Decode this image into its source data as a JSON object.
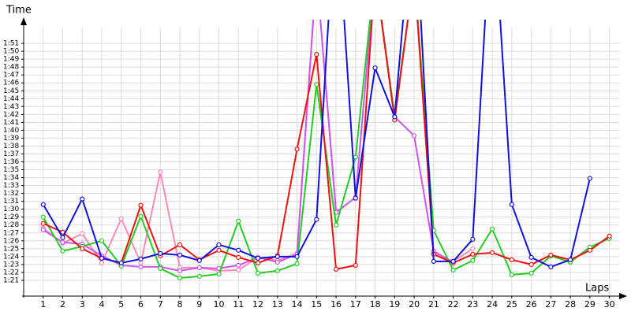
{
  "chart_data": {
    "type": "line",
    "x_label": "Laps",
    "y_label": "Time",
    "x": [
      1,
      2,
      3,
      4,
      5,
      6,
      7,
      8,
      9,
      10,
      11,
      12,
      13,
      14,
      15,
      16,
      17,
      18,
      19,
      20,
      21,
      22,
      23,
      24,
      25,
      26,
      27,
      28,
      29,
      30
    ],
    "xlim": [
      0,
      30.5
    ],
    "xticks": [
      1,
      2,
      3,
      4,
      5,
      6,
      7,
      8,
      9,
      10,
      11,
      12,
      13,
      14,
      15,
      16,
      17,
      18,
      19,
      20,
      21,
      22,
      23,
      24,
      25,
      26,
      27,
      28,
      29,
      30
    ],
    "ylim": [
      79,
      114
    ],
    "yticks": [
      {
        "value": 81,
        "label": "1:21"
      },
      {
        "value": 82,
        "label": "1:22"
      },
      {
        "value": 83,
        "label": "1:23"
      },
      {
        "value": 84,
        "label": "1:24"
      },
      {
        "value": 85,
        "label": "1:25"
      },
      {
        "value": 86,
        "label": "1:26"
      },
      {
        "value": 87,
        "label": "1:27"
      },
      {
        "value": 88,
        "label": "1:28"
      },
      {
        "value": 89,
        "label": "1:29"
      },
      {
        "value": 90,
        "label": "1:30"
      },
      {
        "value": 91,
        "label": "1:31"
      },
      {
        "value": 92,
        "label": "1:32"
      },
      {
        "value": 93,
        "label": "1:33"
      },
      {
        "value": 94,
        "label": "1:34"
      },
      {
        "value": 95,
        "label": "1:35"
      },
      {
        "value": 96,
        "label": "1:36"
      },
      {
        "value": 97,
        "label": "1:37"
      },
      {
        "value": 98,
        "label": "1:38"
      },
      {
        "value": 99,
        "label": "1:39"
      },
      {
        "value": 100,
        "label": "1:40"
      },
      {
        "value": 101,
        "label": "1:41"
      },
      {
        "value": 102,
        "label": "1:42"
      },
      {
        "value": 103,
        "label": "1:43"
      },
      {
        "value": 104,
        "label": "1:44"
      },
      {
        "value": 105,
        "label": "1:45"
      },
      {
        "value": 106,
        "label": "1:46"
      },
      {
        "value": 107,
        "label": "1:47"
      },
      {
        "value": 108,
        "label": "1:48"
      },
      {
        "value": 109,
        "label": "1:49"
      },
      {
        "value": 110,
        "label": "1:50"
      },
      {
        "value": 111,
        "label": "1:51"
      }
    ],
    "grid": true,
    "series": [
      {
        "color": "#ff88bb",
        "values": [
          87.6,
          85.7,
          86.9,
          83.2,
          88.8,
          83.2,
          94.7,
          82.6,
          82.6,
          82.2,
          82.3,
          83.9,
          83.5,
          84.4,
          120,
          89.8,
          null,
          null,
          null,
          null,
          84.6,
          83.4,
          85.0,
          null,
          null,
          null,
          null,
          null,
          null,
          null
        ]
      },
      {
        "color": "#cc55ee",
        "values": [
          87.4,
          85.8,
          85.6,
          84.1,
          82.9,
          82.7,
          82.7,
          82.2,
          82.6,
          82.5,
          82.9,
          83.9,
          83.3,
          84.3,
          120,
          89.6,
          91.5,
          120,
          101.7,
          99.3,
          84.7,
          83.2,
          null,
          null,
          null,
          null,
          null,
          null,
          null,
          null
        ]
      },
      {
        "color": "#22cc22",
        "values": [
          89.0,
          84.7,
          85.3,
          86.0,
          82.8,
          89.1,
          82.5,
          81.3,
          81.5,
          81.8,
          88.5,
          81.9,
          82.2,
          83.1,
          105.8,
          88.0,
          96.6,
          120,
          101.7,
          120,
          87.3,
          82.3,
          83.5,
          87.5,
          81.7,
          81.9,
          84.1,
          83.3,
          85.2,
          86.3
        ]
      },
      {
        "color": "#ee1111",
        "values": [
          88.2,
          87.1,
          85.0,
          83.8,
          83.2,
          90.5,
          84.1,
          85.5,
          83.6,
          84.8,
          83.9,
          83.2,
          84.1,
          97.6,
          109.6,
          82.4,
          82.9,
          120,
          101.3,
          120,
          84.3,
          83.2,
          84.3,
          84.5,
          83.6,
          83.0,
          84.2,
          83.6,
          84.8,
          86.6
        ]
      },
      {
        "color": "#1111dd",
        "values": [
          90.6,
          86.4,
          91.3,
          83.8,
          83.2,
          83.7,
          84.4,
          84.2,
          83.5,
          85.5,
          84.8,
          83.8,
          84.0,
          84.0,
          88.7,
          130,
          91.4,
          107.9,
          101.7,
          130,
          83.4,
          83.4,
          86.2,
          130,
          90.6,
          83.9,
          82.7,
          83.6,
          93.9,
          null
        ]
      }
    ]
  }
}
